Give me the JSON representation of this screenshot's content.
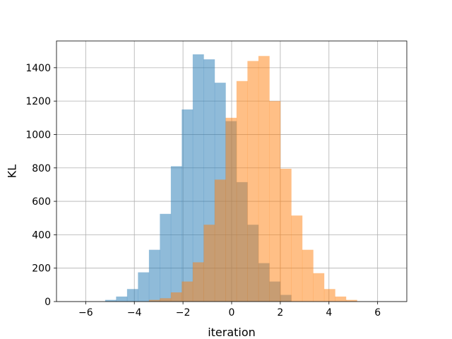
{
  "chart_data": {
    "type": "bar",
    "subtype": "overlapping-histogram",
    "title": "",
    "xlabel": "iteration",
    "ylabel": "KL",
    "xlim": [
      -7.2,
      7.2
    ],
    "ylim": [
      0,
      1560
    ],
    "grid": true,
    "legend": "none",
    "x_ticks": [
      -6,
      -4,
      -2,
      0,
      2,
      4,
      6
    ],
    "x_tick_labels": [
      "−6",
      "−4",
      "−2",
      "0",
      "2",
      "4",
      "6"
    ],
    "y_ticks": [
      0,
      200,
      400,
      600,
      800,
      1000,
      1200,
      1400
    ],
    "y_tick_labels": [
      "0",
      "200",
      "400",
      "600",
      "800",
      "1000",
      "1200",
      "1400"
    ],
    "series": [
      {
        "color": "#1f77b4",
        "opacity": 0.5,
        "bin_width": 0.45,
        "bin_starts": [
          -5.2,
          -4.75,
          -4.3,
          -3.85,
          -3.4,
          -2.95,
          -2.5,
          -2.05,
          -1.6,
          -1.15,
          -0.7,
          -0.25,
          0.2,
          0.65,
          1.1,
          1.55,
          2.0
        ],
        "counts": [
          10,
          30,
          75,
          175,
          310,
          525,
          810,
          1150,
          1480,
          1450,
          1310,
          1080,
          715,
          460,
          230,
          120,
          40
        ]
      },
      {
        "color": "#ff7f0e",
        "opacity": 0.5,
        "bin_width": 0.45,
        "bin_starts": [
          -3.4,
          -2.95,
          -2.5,
          -2.05,
          -1.6,
          -1.15,
          -0.7,
          -0.25,
          0.2,
          0.65,
          1.1,
          1.55,
          2.0,
          2.45,
          2.9,
          3.35,
          3.8,
          4.25,
          4.7
        ],
        "counts": [
          10,
          20,
          55,
          120,
          235,
          460,
          730,
          1100,
          1320,
          1440,
          1470,
          1200,
          795,
          515,
          310,
          170,
          75,
          30,
          10
        ]
      }
    ]
  }
}
